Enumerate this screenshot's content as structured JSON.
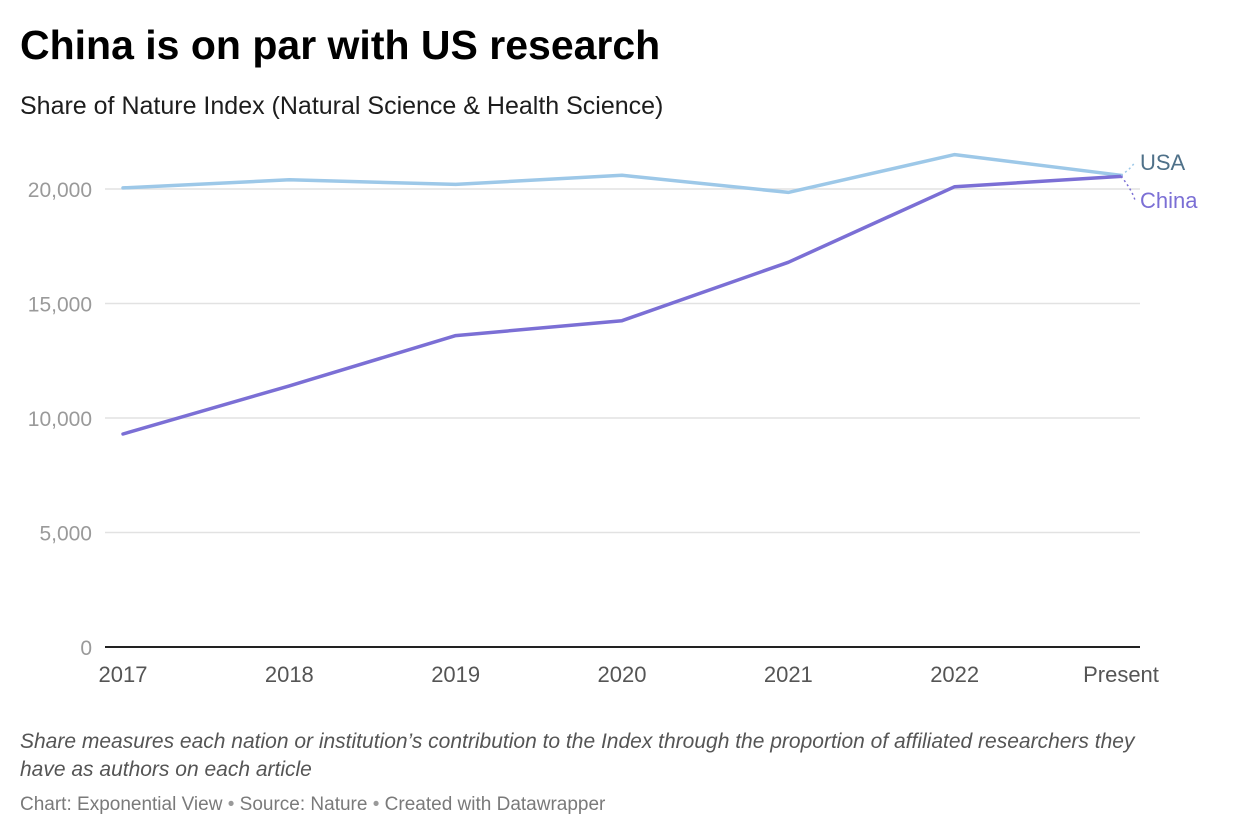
{
  "title": "China is on par with US research",
  "subtitle": "Share of Nature Index (Natural Science & Health Science)",
  "note": "Share measures each nation or institution’s contribution to the Index through the proportion of affiliated researchers they have as authors on each article",
  "footer": {
    "chart_credit": "Chart: Exponential View",
    "source": "Source: Nature",
    "created_with": "Created with Datawrapper",
    "separator": "•"
  },
  "chart_data": {
    "type": "line",
    "categories": [
      "2017",
      "2018",
      "2019",
      "2020",
      "2021",
      "2022",
      "Present"
    ],
    "series": [
      {
        "name": "USA",
        "color": "#9dc8e8",
        "label_color": "#4f7189",
        "values": [
          20050,
          20400,
          20200,
          20600,
          19850,
          21500,
          20600
        ]
      },
      {
        "name": "China",
        "color": "#7b6fd5",
        "label_color": "#7b6fd5",
        "values": [
          9300,
          11400,
          13600,
          14250,
          16800,
          20100,
          20550
        ]
      }
    ],
    "ylim": [
      0,
      22000
    ],
    "yticks": [
      0,
      5000,
      10000,
      15000,
      20000
    ],
    "ytick_labels": [
      "0",
      "5,000",
      "10,000",
      "15,000",
      "20,000"
    ],
    "grid": true,
    "xlabel": "",
    "ylabel": "",
    "legend": "direct labels at line ends"
  }
}
